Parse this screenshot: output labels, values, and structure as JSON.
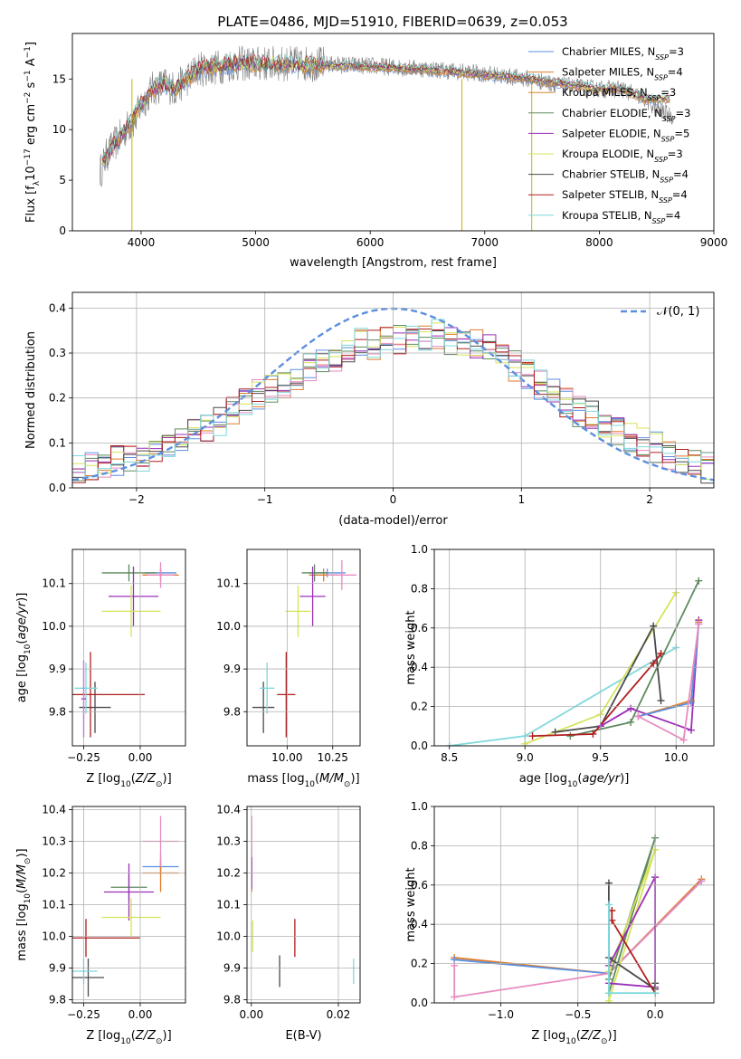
{
  "figure": {
    "title": "PLATE=0486, MJD=51910, FIBERID=0639, z=0.053",
    "colors": {
      "Chabrier MILES": "#5b8fdf",
      "Salpeter MILES": "#e07b2a",
      "Kroupa MILES": "#d08a2a",
      "Chabrier ELODIE": "#5e8a5e",
      "Salpeter ELODIE": "#9c2fb8",
      "Kroupa ELODIE": "#d6e35a",
      "Chabrier STELIB": "#4a4a4a",
      "Salpeter STELIB": "#b01e1e",
      "Kroupa STELIB": "#7fd8dc",
      "extra_pink": "#e88ac0",
      "data_gray": "#808080"
    }
  },
  "chart_data": [
    {
      "id": "spectrum",
      "type": "line",
      "xlabel": "wavelength [Angstrom, rest frame]",
      "ylabel": "Flux [f_λ10^-17 erg cm^-2 s^-1 A^-1]",
      "xlim": [
        3400,
        9000
      ],
      "ylim": [
        0,
        19.5
      ],
      "xticks": [
        4000,
        5000,
        6000,
        7000,
        8000,
        9000
      ],
      "yticks": [
        0,
        5,
        10,
        15
      ],
      "grid": false,
      "legend_position": "right",
      "legend": [
        {
          "base": "Chabrier MILES, N",
          "sub": "SSP",
          "tail": "=3"
        },
        {
          "base": "Salpeter MILES, N",
          "sub": "SSP",
          "tail": "=4"
        },
        {
          "base": "Kroupa MILES, N",
          "sub": "SSP",
          "tail": "=3"
        },
        {
          "base": "Chabrier ELODIE, N",
          "sub": "SSP",
          "tail": "=3"
        },
        {
          "base": "Salpeter ELODIE, N",
          "sub": "SSP",
          "tail": "=5"
        },
        {
          "base": "Kroupa ELODIE, N",
          "sub": "SSP",
          "tail": "=3"
        },
        {
          "base": "Chabrier STELIB, N",
          "sub": "SSP",
          "tail": "=4"
        },
        {
          "base": "Salpeter STELIB, N",
          "sub": "SSP",
          "tail": "=4"
        },
        {
          "base": "Kroupa STELIB, N",
          "sub": "SSP",
          "tail": "=4"
        }
      ],
      "data_trend": {
        "x": [
          3650,
          3700,
          3800,
          3900,
          3950,
          4000,
          4100,
          4200,
          4300,
          4400,
          4500,
          4600,
          4800,
          5000,
          5200,
          5500,
          6000,
          6500,
          7000,
          7400,
          7600,
          7800,
          8000,
          8200,
          8400,
          8500,
          8700
        ],
        "y": [
          6,
          7.5,
          9,
          10.5,
          11,
          12.5,
          14,
          14.5,
          14,
          15,
          16,
          16,
          16.5,
          16.5,
          16.5,
          16.5,
          16.3,
          16,
          15.5,
          15,
          14.5,
          14.2,
          14,
          14,
          13,
          12,
          11
        ]
      },
      "model_trend": {
        "x": [
          3650,
          3700,
          3800,
          3900,
          4000,
          4100,
          4200,
          4300,
          4400,
          4500,
          4800,
          5000,
          5500,
          6000,
          6500,
          7000,
          7400,
          7800,
          8000,
          8200,
          8400
        ],
        "y": [
          6.5,
          7.5,
          9,
          10.5,
          12.5,
          14,
          14.5,
          14,
          15,
          16,
          16.5,
          16.5,
          16.4,
          16.2,
          15.9,
          15.4,
          15,
          14.3,
          14,
          14,
          13
        ]
      },
      "spikes_x": [
        3920,
        6800,
        7410
      ]
    },
    {
      "id": "residuals",
      "type": "histogram",
      "xlabel": "(data-model)/error",
      "ylabel": "Normed distribution",
      "xlim": [
        -2.5,
        2.5
      ],
      "ylim": [
        0,
        0.435
      ],
      "xticks": [
        -2,
        -1,
        0,
        1,
        2
      ],
      "yticks": [
        0,
        0.1,
        0.2,
        0.3,
        0.4
      ],
      "grid": true,
      "legend_position": "top-right",
      "legend_label": "𝒩(0, 1)",
      "bins": [
        -2.5,
        -2.4,
        -2.3,
        -2.2,
        -2.1,
        -2.0,
        -1.9,
        -1.8,
        -1.7,
        -1.6,
        -1.5,
        -1.4,
        -1.3,
        -1.2,
        -1.1,
        -1.0,
        -0.9,
        -0.8,
        -0.7,
        -0.6,
        -0.5,
        -0.4,
        -0.3,
        -0.2,
        -0.1,
        0.0,
        0.1,
        0.2,
        0.3,
        0.4,
        0.5,
        0.6,
        0.7,
        0.8,
        0.9,
        1.0,
        1.1,
        1.2,
        1.3,
        1.4,
        1.5,
        1.6,
        1.7,
        1.8,
        1.9,
        2.0,
        2.1,
        2.2,
        2.3,
        2.4,
        2.5
      ],
      "envelope": [
        0.04,
        0.045,
        0.055,
        0.06,
        0.06,
        0.07,
        0.08,
        0.09,
        0.1,
        0.12,
        0.13,
        0.145,
        0.17,
        0.19,
        0.21,
        0.22,
        0.23,
        0.25,
        0.27,
        0.28,
        0.29,
        0.31,
        0.32,
        0.32,
        0.33,
        0.33,
        0.34,
        0.34,
        0.34,
        0.33,
        0.33,
        0.32,
        0.31,
        0.29,
        0.27,
        0.25,
        0.23,
        0.21,
        0.19,
        0.17,
        0.16,
        0.145,
        0.13,
        0.11,
        0.1,
        0.09,
        0.075,
        0.065,
        0.055,
        0.045
      ],
      "gaussian": {
        "mu": 0,
        "sigma": 1
      }
    },
    {
      "id": "age_vs_Z",
      "type": "errorbar",
      "xlabel": "Z [log10(Z/Z⊙)]",
      "ylabel": "age [log10(age/yr)]",
      "xlim": [
        -0.3,
        0.2
      ],
      "ylim": [
        9.72,
        10.18
      ],
      "xticks": [
        -0.25,
        0.0
      ],
      "yticks": [
        9.8,
        9.9,
        10.0,
        10.1
      ],
      "grid": true,
      "points": [
        {
          "color": "Chabrier MILES",
          "x": 0.09,
          "y": 10.125,
          "xerr": 0.07,
          "yerr": 0.01
        },
        {
          "color": "Salpeter MILES",
          "x": 0.09,
          "y": 10.12,
          "xerr": 0.08,
          "yerr": 0.015
        },
        {
          "color": "extra_pink",
          "x": 0.09,
          "y": 10.12,
          "xerr": 0.06,
          "yerr": 0.03
        },
        {
          "color": "Chabrier ELODIE",
          "x": -0.05,
          "y": 10.125,
          "xerr": 0.12,
          "yerr": 0.02
        },
        {
          "color": "Salpeter ELODIE",
          "x": -0.03,
          "y": 10.07,
          "xerr": 0.11,
          "yerr": 0.07
        },
        {
          "color": "Kroupa ELODIE",
          "x": -0.04,
          "y": 10.035,
          "xerr": 0.13,
          "yerr": 0.06
        },
        {
          "color": "Chabrier STELIB",
          "x": -0.2,
          "y": 9.81,
          "xerr": 0.07,
          "yerr": 0.06
        },
        {
          "color": "Salpeter STELIB",
          "x": -0.22,
          "y": 9.84,
          "xerr": 0.24,
          "yerr": 0.1
        },
        {
          "color": "Kroupa STELIB",
          "x": -0.24,
          "y": 9.855,
          "xerr": 0.05,
          "yerr": 0.06
        },
        {
          "color": "Salpeter ELODIE",
          "x": -0.25,
          "y": 9.83,
          "xerr": 0.01,
          "yerr": 0.09
        }
      ]
    },
    {
      "id": "age_vs_mass",
      "type": "errorbar",
      "xlabel": "mass [log10(M/M⊙)]",
      "ylabel": "",
      "xlim": [
        9.78,
        10.4
      ],
      "ylim": [
        9.72,
        10.18
      ],
      "xticks": [
        10.0,
        10.25
      ],
      "yticks": [
        9.8,
        9.9,
        10.0,
        10.1
      ],
      "grid": true,
      "points": [
        {
          "color": "Chabrier MILES",
          "x": 10.22,
          "y": 10.125,
          "xerr": 0.1,
          "yerr": 0.01
        },
        {
          "color": "Salpeter MILES",
          "x": 10.2,
          "y": 10.12,
          "xerr": 0.08,
          "yerr": 0.015
        },
        {
          "color": "extra_pink",
          "x": 10.3,
          "y": 10.12,
          "xerr": 0.08,
          "yerr": 0.035
        },
        {
          "color": "Chabrier ELODIE",
          "x": 10.15,
          "y": 10.125,
          "xerr": 0.07,
          "yerr": 0.02
        },
        {
          "color": "Salpeter ELODIE",
          "x": 10.14,
          "y": 10.07,
          "xerr": 0.07,
          "yerr": 0.07
        },
        {
          "color": "Kroupa ELODIE",
          "x": 10.06,
          "y": 10.035,
          "xerr": 0.07,
          "yerr": 0.06
        },
        {
          "color": "Chabrier STELIB",
          "x": 9.87,
          "y": 9.81,
          "xerr": 0.06,
          "yerr": 0.06
        },
        {
          "color": "Salpeter STELIB",
          "x": 9.995,
          "y": 9.84,
          "xerr": 0.05,
          "yerr": 0.1
        },
        {
          "color": "Kroupa STELIB",
          "x": 9.89,
          "y": 9.855,
          "xerr": 0.04,
          "yerr": 0.06
        }
      ]
    },
    {
      "id": "massweight_vs_age",
      "type": "line",
      "xlabel": "age [log10(age/yr)]",
      "ylabel": "mass weight",
      "xlim": [
        8.4,
        10.25
      ],
      "ylim": [
        0,
        1
      ],
      "xticks": [
        8.5,
        9.0,
        9.5,
        10.0
      ],
      "yticks": [
        0,
        0.2,
        0.4,
        0.6,
        0.8,
        1.0
      ],
      "grid": true,
      "series": [
        {
          "color": "Kroupa STELIB",
          "x": [
            9.0,
            10.0
          ],
          "y": [
            0.05,
            0.5
          ],
          "x0": 8.5,
          "y0": 0.0
        },
        {
          "color": "Kroupa ELODIE",
          "x": [
            9.0,
            9.5,
            10.0
          ],
          "y": [
            0.01,
            0.16,
            0.78
          ]
        },
        {
          "color": "Chabrier ELODIE",
          "x": [
            9.3,
            9.7,
            10.15
          ],
          "y": [
            0.05,
            0.12,
            0.84
          ]
        },
        {
          "color": "Chabrier STELIB",
          "x": [
            9.2,
            9.5,
            9.85,
            9.9
          ],
          "y": [
            0.07,
            0.1,
            0.61,
            0.23
          ]
        },
        {
          "color": "Salpeter STELIB",
          "x": [
            9.05,
            9.45,
            9.85,
            9.9
          ],
          "y": [
            0.05,
            0.06,
            0.42,
            0.47
          ]
        },
        {
          "color": "Salpeter ELODIE",
          "x": [
            9.5,
            9.7,
            10.1,
            10.15
          ],
          "y": [
            0.1,
            0.19,
            0.08,
            0.64
          ]
        },
        {
          "color": "Salpeter MILES",
          "x": [
            9.75,
            10.1,
            10.15
          ],
          "y": [
            0.15,
            0.23,
            0.63
          ]
        },
        {
          "color": "Chabrier MILES",
          "x": [
            9.75,
            10.1,
            10.15
          ],
          "y": [
            0.15,
            0.22,
            0.62
          ]
        },
        {
          "color": "extra_pink",
          "x": [
            9.75,
            10.05,
            10.15
          ],
          "y": [
            0.15,
            0.03,
            0.62
          ]
        }
      ]
    },
    {
      "id": "mass_vs_Z",
      "type": "errorbar",
      "xlabel": "Z [log10(Z/Z⊙)]",
      "ylabel": "mass [log10(M/M⊙)]",
      "xlim": [
        -0.3,
        0.2
      ],
      "ylim": [
        9.79,
        10.41
      ],
      "xticks": [
        -0.25,
        0.0
      ],
      "yticks": [
        9.8,
        9.9,
        10.0,
        10.1,
        10.2,
        10.3,
        10.4
      ],
      "grid": true,
      "points": [
        {
          "color": "Chabrier MILES",
          "x": 0.09,
          "y": 10.22,
          "xerr": 0.08,
          "yerr": 0.02
        },
        {
          "color": "Salpeter MILES",
          "x": 0.09,
          "y": 10.2,
          "xerr": 0.08,
          "yerr": 0.06
        },
        {
          "color": "extra_pink",
          "x": 0.09,
          "y": 10.3,
          "xerr": 0.08,
          "yerr": 0.08
        },
        {
          "color": "Chabrier ELODIE",
          "x": -0.05,
          "y": 10.155,
          "xerr": 0.08,
          "yerr": 0.04
        },
        {
          "color": "Salpeter ELODIE",
          "x": -0.05,
          "y": 10.14,
          "xerr": 0.11,
          "yerr": 0.09
        },
        {
          "color": "Kroupa ELODIE",
          "x": -0.04,
          "y": 10.06,
          "xerr": 0.13,
          "yerr": 0.06
        },
        {
          "color": "Chabrier STELIB",
          "x": -0.23,
          "y": 9.87,
          "xerr": 0.07,
          "yerr": 0.06
        },
        {
          "color": "Salpeter STELIB",
          "x": -0.24,
          "y": 9.995,
          "xerr": 0.24,
          "yerr": 0.06
        },
        {
          "color": "Kroupa STELIB",
          "x": -0.25,
          "y": 9.89,
          "xerr": 0.06,
          "yerr": 0.04
        }
      ]
    },
    {
      "id": "mass_vs_EBV",
      "type": "errorbar",
      "xlabel": "E(B-V)",
      "ylabel": "",
      "xlim": [
        -0.001,
        0.025
      ],
      "ylim": [
        9.79,
        10.41
      ],
      "xticks": [
        0.0,
        0.02
      ],
      "yticks": [
        9.8,
        9.9,
        10.0,
        10.1,
        10.2,
        10.3,
        10.4
      ],
      "grid": true,
      "points": [
        {
          "color": "Chabrier MILES",
          "x": 0.0001,
          "y": 10.22,
          "xerr": 0,
          "yerr": 0.02
        },
        {
          "color": "Salpeter MILES",
          "x": 0.0001,
          "y": 10.2,
          "xerr": 0,
          "yerr": 0.06
        },
        {
          "color": "extra_pink",
          "x": 0.0001,
          "y": 10.3,
          "xerr": 0,
          "yerr": 0.08
        },
        {
          "color": "Salpeter ELODIE",
          "x": 0.0001,
          "y": 10.2,
          "xerr": 0,
          "yerr": 0.05
        },
        {
          "color": "Kroupa ELODIE",
          "x": 0.0003,
          "y": 10.0,
          "xerr": 0,
          "yerr": 0.05
        },
        {
          "color": "Chabrier STELIB",
          "x": 0.0065,
          "y": 9.89,
          "xerr": 0,
          "yerr": 0.05
        },
        {
          "color": "Salpeter STELIB",
          "x": 0.01,
          "y": 9.995,
          "xerr": 0,
          "yerr": 0.06
        },
        {
          "color": "Kroupa STELIB",
          "x": 0.0235,
          "y": 9.89,
          "xerr": 0,
          "yerr": 0.04
        }
      ]
    },
    {
      "id": "massweight_vs_Z",
      "type": "line",
      "xlabel": "Z [log10(Z/Z⊙)]",
      "ylabel": "mass weight",
      "xlim": [
        -1.43,
        0.38
      ],
      "ylim": [
        0,
        1
      ],
      "xticks": [
        -1.0,
        -0.5,
        0.0
      ],
      "yticks": [
        0,
        0.2,
        0.4,
        0.6,
        0.8,
        1.0
      ],
      "grid": true,
      "series": [
        {
          "color": "Salpeter MILES",
          "x": [
            -1.3,
            -0.3,
            0.3
          ],
          "y": [
            0.23,
            0.15,
            0.63
          ]
        },
        {
          "color": "Chabrier MILES",
          "x": [
            -1.3,
            -0.3,
            0.3
          ],
          "y": [
            0.22,
            0.15,
            0.62
          ]
        },
        {
          "color": "extra_pink",
          "x": [
            -1.3,
            -1.3,
            -0.3,
            0.3
          ],
          "y": [
            0.19,
            0.03,
            0.15,
            0.62
          ]
        },
        {
          "color": "Chabrier ELODIE",
          "x": [
            -0.3,
            0.0,
            -0.3
          ],
          "y": [
            0.05,
            0.84,
            0.12
          ]
        },
        {
          "color": "Kroupa ELODIE",
          "x": [
            -0.3,
            0.0,
            -0.3
          ],
          "y": [
            0.01,
            0.78,
            0.16
          ]
        },
        {
          "color": "Salpeter ELODIE",
          "x": [
            -0.3,
            0.0,
            0.0,
            -0.3
          ],
          "y": [
            0.1,
            0.08,
            0.64,
            0.19
          ]
        },
        {
          "color": "Chabrier STELIB",
          "x": [
            -0.3,
            -0.3,
            0.0,
            0.0
          ],
          "y": [
            0.61,
            0.23,
            0.07,
            0.1
          ]
        },
        {
          "color": "Salpeter STELIB",
          "x": [
            -0.28,
            -0.28,
            0.0
          ],
          "y": [
            0.47,
            0.42,
            0.05
          ]
        },
        {
          "color": "Kroupa STELIB",
          "x": [
            -0.3,
            -0.3,
            0.0
          ],
          "y": [
            0.5,
            0.05,
            0.05
          ]
        }
      ]
    }
  ]
}
